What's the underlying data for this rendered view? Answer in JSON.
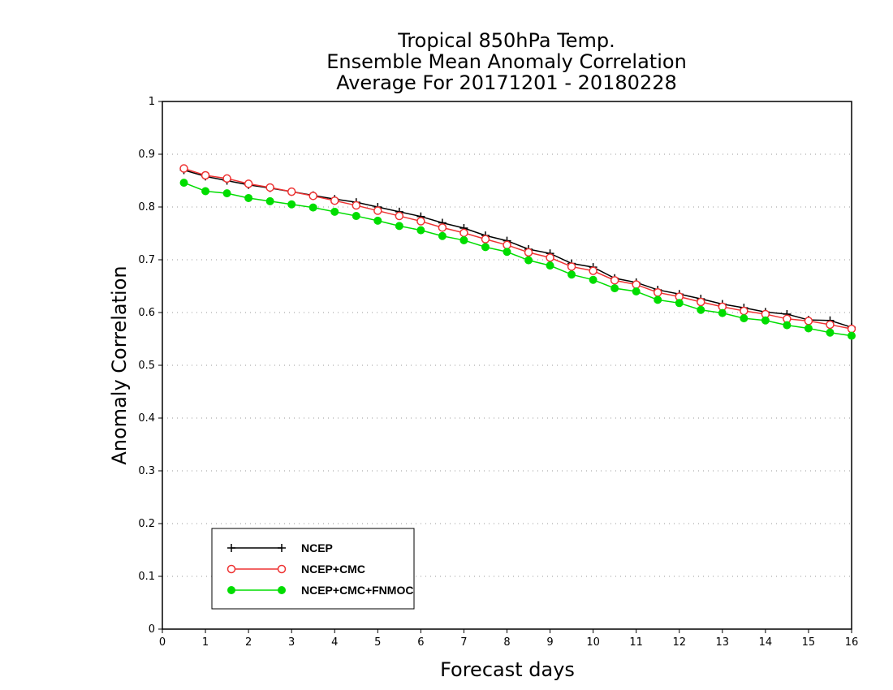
{
  "chart_data": {
    "type": "line",
    "title": [
      "Tropical 850hPa Temp.",
      "Ensemble Mean Anomaly Correlation",
      "Average For 20171201 - 20180228"
    ],
    "xlabel": "Forecast days",
    "ylabel": "Anomaly Correlation",
    "xlim": [
      0,
      16
    ],
    "ylim": [
      0,
      1
    ],
    "xticks": [
      "0",
      "1",
      "2",
      "3",
      "4",
      "5",
      "6",
      "7",
      "8",
      "9",
      "10",
      "11",
      "12",
      "13",
      "14",
      "15",
      "16"
    ],
    "yticks": [
      "0",
      "0.1",
      "0.2",
      "0.3",
      "0.4",
      "0.5",
      "0.6",
      "0.7",
      "0.8",
      "0.9",
      "1"
    ],
    "grid": "horizontal dotted",
    "legend_position": "bottom-left",
    "x": [
      0.5,
      1,
      1.5,
      2,
      2.5,
      3,
      3.5,
      4,
      4.5,
      5,
      5.5,
      6,
      6.5,
      7,
      7.5,
      8,
      8.5,
      9,
      9.5,
      10,
      10.5,
      11,
      11.5,
      12,
      12.5,
      13,
      13.5,
      14,
      14.5,
      15,
      15.5,
      16
    ],
    "series": [
      {
        "name": "NCEP",
        "color": "#000000",
        "marker": "plus",
        "values": [
          0.87,
          0.858,
          0.85,
          0.842,
          0.836,
          0.829,
          0.822,
          0.815,
          0.809,
          0.8,
          0.791,
          0.782,
          0.77,
          0.76,
          0.746,
          0.736,
          0.72,
          0.712,
          0.693,
          0.686,
          0.665,
          0.657,
          0.643,
          0.635,
          0.626,
          0.616,
          0.609,
          0.601,
          0.597,
          0.586,
          0.585,
          0.572
        ]
      },
      {
        "name": "NCEP+CMC",
        "color": "#ee3333",
        "marker": "open-circle",
        "values": [
          0.873,
          0.86,
          0.854,
          0.844,
          0.837,
          0.829,
          0.821,
          0.812,
          0.803,
          0.793,
          0.783,
          0.773,
          0.761,
          0.751,
          0.739,
          0.728,
          0.714,
          0.704,
          0.687,
          0.679,
          0.661,
          0.653,
          0.638,
          0.63,
          0.62,
          0.611,
          0.603,
          0.597,
          0.588,
          0.584,
          0.577,
          0.569
        ]
      },
      {
        "name": "NCEP+CMC+FNMOC",
        "color": "#00dd00",
        "marker": "filled-circle",
        "values": [
          0.846,
          0.83,
          0.826,
          0.817,
          0.811,
          0.805,
          0.799,
          0.791,
          0.783,
          0.774,
          0.764,
          0.756,
          0.745,
          0.737,
          0.724,
          0.715,
          0.699,
          0.689,
          0.672,
          0.662,
          0.646,
          0.64,
          0.624,
          0.618,
          0.605,
          0.599,
          0.589,
          0.585,
          0.576,
          0.57,
          0.562,
          0.556
        ]
      }
    ]
  }
}
